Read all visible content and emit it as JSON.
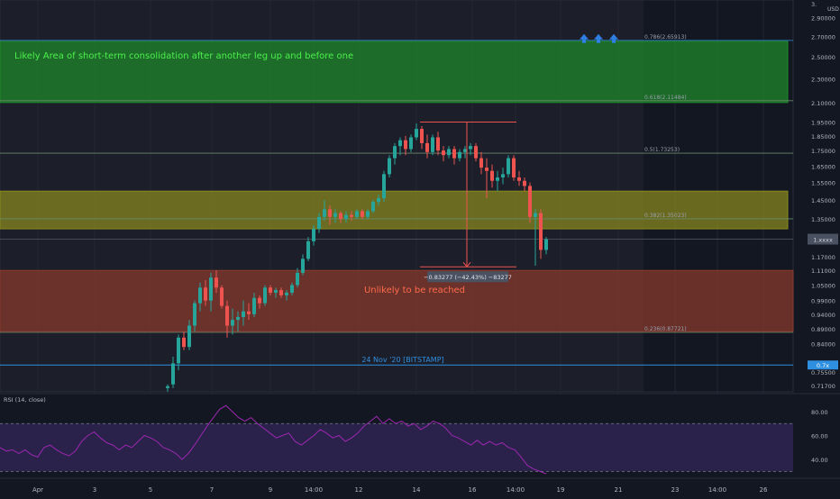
{
  "chart_data": [
    {
      "type": "candlestick",
      "title": "",
      "y_axis": {
        "unit": "USD",
        "scale": "log",
        "ticks": [
          "2.90000",
          "2.70000",
          "2.50000",
          "2.30000",
          "2.10000",
          "1.95000",
          "1.85000",
          "1.75000",
          "1.65000",
          "1.55000",
          "1.45000",
          "1.35000",
          "1.17000",
          "1.11000",
          "1.05000",
          "0.99000",
          "0.94000",
          "0.89000",
          "0.84000",
          "0.75500",
          "0.71700"
        ],
        "top_tick_partial": "3.",
        "ylim": [
          0.7,
          3.1
        ]
      },
      "x_axis": {
        "ticks": [
          "Apr",
          "3",
          "5",
          "7",
          "9",
          "14:00",
          "12",
          "14",
          "16",
          "14:00",
          "19",
          "21",
          "23",
          "14:00",
          "26"
        ]
      },
      "price_badges": [
        "1.xxxx",
        "0.7x"
      ],
      "fib_levels": [
        {
          "label": "0.786(2.65913)",
          "price": 2.65913
        },
        {
          "label": "0.618(2.11484)",
          "price": 2.11484
        },
        {
          "label": "0.5(1.73253)",
          "price": 1.73253
        },
        {
          "label": "0.382(1.35023)",
          "price": 1.35023
        },
        {
          "label": "0.236(0.87721)",
          "price": 0.87721
        }
      ],
      "zones": [
        {
          "name": "green-zone",
          "from": 2.1,
          "to": 2.65,
          "color": "#1f8a2b",
          "text": "Likely Area of short-term consolidation after another leg up and before one",
          "text_color": "#4cf04c"
        },
        {
          "name": "yellow-zone",
          "from": 1.3,
          "to": 1.5,
          "color": "#8a8a1f"
        },
        {
          "name": "red-zone",
          "from": 0.88,
          "to": 1.11,
          "color": "#8a3a2e",
          "text": "Unlikely to be reached",
          "text_color": "#ff6b4a"
        }
      ],
      "horizontal_lines": [
        {
          "price": 0.775,
          "label": "24 Nov '20 [BITSTAMP]",
          "color": "#2f8fe0"
        },
        {
          "price": 1.25,
          "label": "",
          "color": "#4a4a55"
        }
      ],
      "measure": {
        "label": "−0.83277 (−42.43%) −83277",
        "top": 1.95,
        "bottom": 1.11
      },
      "candles": [
        {
          "o": 0.71,
          "h": 0.72,
          "l": 0.7,
          "c": 0.715
        },
        {
          "o": 0.72,
          "h": 0.8,
          "l": 0.71,
          "c": 0.78
        },
        {
          "o": 0.78,
          "h": 0.87,
          "l": 0.76,
          "c": 0.86
        },
        {
          "o": 0.86,
          "h": 0.88,
          "l": 0.82,
          "c": 0.83
        },
        {
          "o": 0.83,
          "h": 0.92,
          "l": 0.82,
          "c": 0.9
        },
        {
          "o": 0.9,
          "h": 0.99,
          "l": 0.88,
          "c": 0.98
        },
        {
          "o": 0.98,
          "h": 1.06,
          "l": 0.95,
          "c": 1.04
        },
        {
          "o": 1.04,
          "h": 1.07,
          "l": 0.97,
          "c": 0.99
        },
        {
          "o": 0.99,
          "h": 1.1,
          "l": 0.95,
          "c": 1.08
        },
        {
          "o": 1.08,
          "h": 1.11,
          "l": 1.02,
          "c": 1.04
        },
        {
          "o": 1.04,
          "h": 1.05,
          "l": 0.96,
          "c": 0.97
        },
        {
          "o": 0.97,
          "h": 0.99,
          "l": 0.86,
          "c": 0.9
        },
        {
          "o": 0.9,
          "h": 0.96,
          "l": 0.87,
          "c": 0.92
        },
        {
          "o": 0.92,
          "h": 0.95,
          "l": 0.88,
          "c": 0.93
        },
        {
          "o": 0.93,
          "h": 0.99,
          "l": 0.9,
          "c": 0.95
        },
        {
          "o": 0.95,
          "h": 0.98,
          "l": 0.92,
          "c": 0.94
        },
        {
          "o": 0.94,
          "h": 1.02,
          "l": 0.93,
          "c": 1.0
        },
        {
          "o": 1.0,
          "h": 1.01,
          "l": 0.96,
          "c": 0.98
        },
        {
          "o": 0.98,
          "h": 1.05,
          "l": 0.97,
          "c": 1.04
        },
        {
          "o": 1.04,
          "h": 1.05,
          "l": 1.01,
          "c": 1.02
        },
        {
          "o": 1.02,
          "h": 1.04,
          "l": 1.0,
          "c": 1.03
        },
        {
          "o": 1.03,
          "h": 1.04,
          "l": 1.0,
          "c": 1.01
        },
        {
          "o": 1.01,
          "h": 1.03,
          "l": 0.99,
          "c": 1.02
        },
        {
          "o": 1.02,
          "h": 1.06,
          "l": 1.01,
          "c": 1.05
        },
        {
          "o": 1.05,
          "h": 1.12,
          "l": 1.04,
          "c": 1.1
        },
        {
          "o": 1.1,
          "h": 1.18,
          "l": 1.09,
          "c": 1.16
        },
        {
          "o": 1.16,
          "h": 1.26,
          "l": 1.15,
          "c": 1.24
        },
        {
          "o": 1.24,
          "h": 1.32,
          "l": 1.22,
          "c": 1.3
        },
        {
          "o": 1.3,
          "h": 1.38,
          "l": 1.28,
          "c": 1.36
        },
        {
          "o": 1.36,
          "h": 1.45,
          "l": 1.34,
          "c": 1.4
        },
        {
          "o": 1.4,
          "h": 1.42,
          "l": 1.32,
          "c": 1.36
        },
        {
          "o": 1.36,
          "h": 1.4,
          "l": 1.33,
          "c": 1.38
        },
        {
          "o": 1.38,
          "h": 1.39,
          "l": 1.33,
          "c": 1.35
        },
        {
          "o": 1.35,
          "h": 1.39,
          "l": 1.33,
          "c": 1.37
        },
        {
          "o": 1.37,
          "h": 1.39,
          "l": 1.34,
          "c": 1.36
        },
        {
          "o": 1.36,
          "h": 1.4,
          "l": 1.35,
          "c": 1.39
        },
        {
          "o": 1.39,
          "h": 1.4,
          "l": 1.35,
          "c": 1.36
        },
        {
          "o": 1.36,
          "h": 1.4,
          "l": 1.35,
          "c": 1.39
        },
        {
          "o": 1.39,
          "h": 1.45,
          "l": 1.38,
          "c": 1.44
        },
        {
          "o": 1.44,
          "h": 1.48,
          "l": 1.42,
          "c": 1.46
        },
        {
          "o": 1.46,
          "h": 1.62,
          "l": 1.44,
          "c": 1.6
        },
        {
          "o": 1.6,
          "h": 1.72,
          "l": 1.58,
          "c": 1.7
        },
        {
          "o": 1.7,
          "h": 1.8,
          "l": 1.66,
          "c": 1.78
        },
        {
          "o": 1.78,
          "h": 1.84,
          "l": 1.72,
          "c": 1.82
        },
        {
          "o": 1.82,
          "h": 1.85,
          "l": 1.72,
          "c": 1.76
        },
        {
          "o": 1.76,
          "h": 1.86,
          "l": 1.74,
          "c": 1.84
        },
        {
          "o": 1.84,
          "h": 1.94,
          "l": 1.82,
          "c": 1.9
        },
        {
          "o": 1.9,
          "h": 1.92,
          "l": 1.76,
          "c": 1.8
        },
        {
          "o": 1.8,
          "h": 1.86,
          "l": 1.7,
          "c": 1.74
        },
        {
          "o": 1.74,
          "h": 1.86,
          "l": 1.72,
          "c": 1.84
        },
        {
          "o": 1.84,
          "h": 1.88,
          "l": 1.72,
          "c": 1.75
        },
        {
          "o": 1.75,
          "h": 1.78,
          "l": 1.68,
          "c": 1.72
        },
        {
          "o": 1.72,
          "h": 1.78,
          "l": 1.7,
          "c": 1.76
        },
        {
          "o": 1.76,
          "h": 1.78,
          "l": 1.66,
          "c": 1.7
        },
        {
          "o": 1.7,
          "h": 1.76,
          "l": 1.68,
          "c": 1.74
        },
        {
          "o": 1.74,
          "h": 1.78,
          "l": 1.7,
          "c": 1.76
        },
        {
          "o": 1.76,
          "h": 1.8,
          "l": 1.72,
          "c": 1.78
        },
        {
          "o": 1.78,
          "h": 1.8,
          "l": 1.68,
          "c": 1.7
        },
        {
          "o": 1.7,
          "h": 1.74,
          "l": 1.6,
          "c": 1.64
        },
        {
          "o": 1.64,
          "h": 1.7,
          "l": 1.46,
          "c": 1.62
        },
        {
          "o": 1.62,
          "h": 1.66,
          "l": 1.52,
          "c": 1.56
        },
        {
          "o": 1.56,
          "h": 1.62,
          "l": 1.5,
          "c": 1.58
        },
        {
          "o": 1.58,
          "h": 1.64,
          "l": 1.54,
          "c": 1.6
        },
        {
          "o": 1.6,
          "h": 1.72,
          "l": 1.58,
          "c": 1.7
        },
        {
          "o": 1.7,
          "h": 1.72,
          "l": 1.56,
          "c": 1.58
        },
        {
          "o": 1.58,
          "h": 1.62,
          "l": 1.53,
          "c": 1.56
        },
        {
          "o": 1.56,
          "h": 1.58,
          "l": 1.5,
          "c": 1.53
        },
        {
          "o": 1.53,
          "h": 1.55,
          "l": 1.33,
          "c": 1.36
        },
        {
          "o": 1.36,
          "h": 1.4,
          "l": 1.13,
          "c": 1.38
        },
        {
          "o": 1.38,
          "h": 1.4,
          "l": 1.16,
          "c": 1.2
        },
        {
          "o": 1.2,
          "h": 1.26,
          "l": 1.18,
          "c": 1.25
        }
      ]
    },
    {
      "type": "line",
      "title": "RSI (14, close)",
      "levels": [
        70,
        30
      ],
      "y_ticks": [
        "80.00",
        "60.00",
        "40.00"
      ],
      "ylim": [
        25,
        95
      ],
      "series": [
        {
          "values": [
            50,
            47,
            48,
            45,
            48,
            44,
            42,
            50,
            52,
            48,
            45,
            43,
            47,
            55,
            60,
            63,
            58,
            54,
            52,
            48,
            52,
            50,
            55,
            60,
            58,
            55,
            50,
            48,
            45,
            40,
            45,
            52,
            60,
            68,
            75,
            82,
            85,
            80,
            75,
            72,
            75,
            70,
            66,
            62,
            58,
            60,
            62,
            55,
            52,
            56,
            60,
            65,
            62,
            58,
            60,
            55,
            58,
            62,
            68,
            72,
            76,
            70,
            74,
            70,
            72,
            68,
            70,
            65,
            68,
            72,
            70,
            66,
            60,
            58,
            55,
            52,
            56,
            52,
            55,
            52,
            54,
            50,
            48,
            42,
            35,
            32,
            30,
            28
          ]
        }
      ]
    }
  ],
  "badges": {
    "usd": "USD"
  },
  "rsi_label": "RSI (14, close)"
}
